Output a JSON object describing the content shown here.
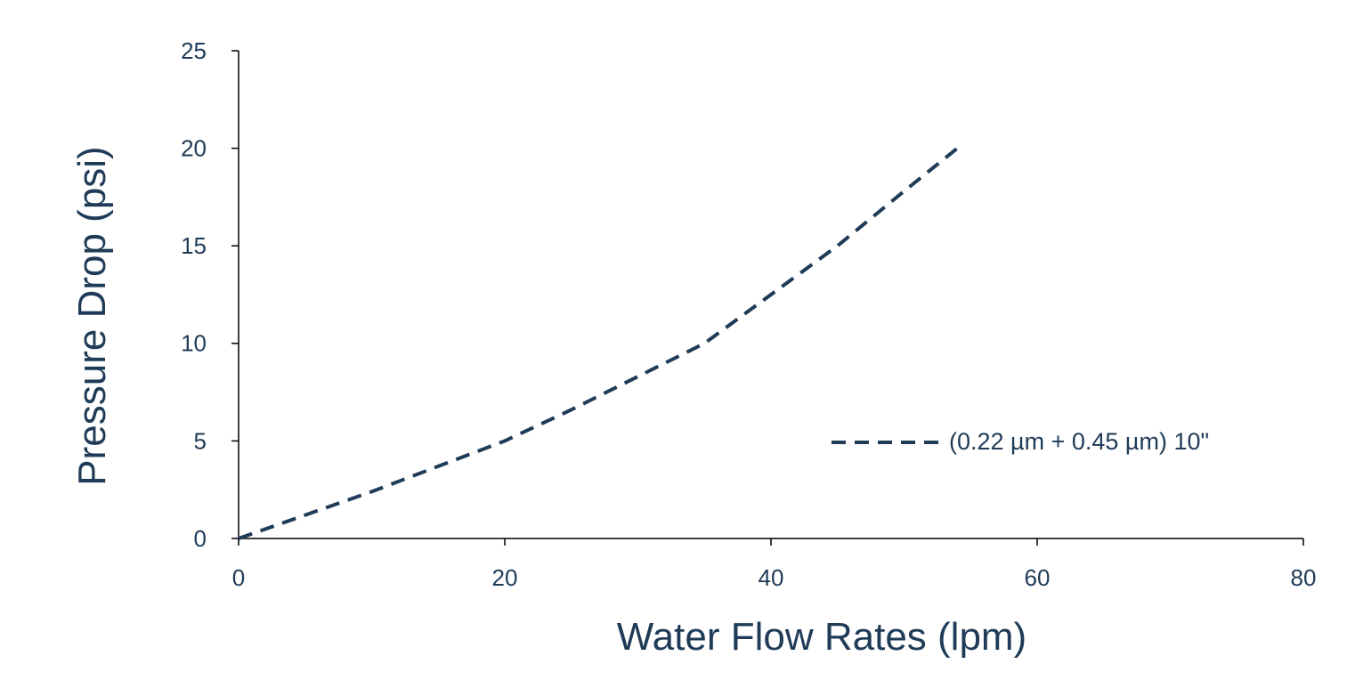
{
  "chart_data": {
    "type": "line",
    "title": "",
    "xlabel": "Water Flow Rates (lpm)",
    "ylabel": "Pressure Drop (psi)",
    "xlim": [
      0,
      80
    ],
    "ylim": [
      0,
      25
    ],
    "xticks": [
      0,
      20,
      40,
      60,
      80
    ],
    "yticks": [
      0,
      5,
      10,
      15,
      20,
      25
    ],
    "grid": false,
    "legend_position": "right",
    "series": [
      {
        "name": "(0.22 µm + 0.45 µm) 10\"",
        "style": "dashed",
        "color": "#1f3b57",
        "x": [
          0,
          5,
          10,
          15,
          20,
          25,
          30,
          35,
          40,
          45,
          50,
          54
        ],
        "y": [
          0,
          1.2,
          2.4,
          3.7,
          5.0,
          6.6,
          8.3,
          10.0,
          12.5,
          15.0,
          17.8,
          20.0
        ]
      }
    ]
  },
  "colors": {
    "axis": "#000000",
    "text": "#1f3b57",
    "series": "#1f3b57"
  }
}
